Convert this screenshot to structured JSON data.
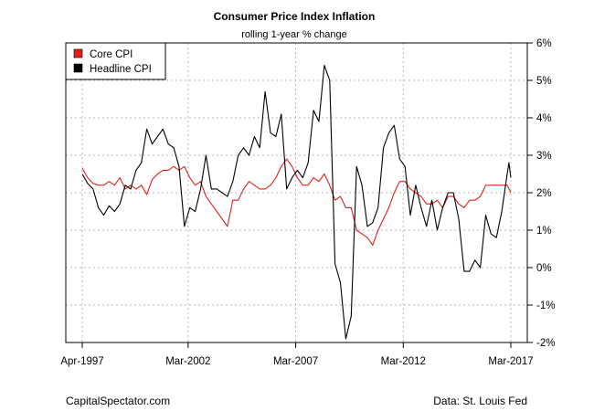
{
  "chart_data": {
    "type": "line",
    "title": "Consumer Price Index Inflation",
    "subtitle": "rolling 1-year % change",
    "ylim": [
      -2,
      6
    ],
    "y_ticks": [
      -2,
      -1,
      0,
      1,
      2,
      3,
      4,
      5,
      6
    ],
    "y_tick_labels": [
      "-2%",
      "-1%",
      "0%",
      "1%",
      "2%",
      "3%",
      "4%",
      "5%",
      "6%"
    ],
    "y_axis_position": "right",
    "x_range": [
      1997.25,
      2017.17
    ],
    "x_ticks": [
      1997.25,
      2002.17,
      2007.17,
      2012.17,
      2017.17
    ],
    "x_tick_labels": [
      "Apr-1997",
      "Mar-2002",
      "Mar-2007",
      "Mar-2012",
      "Mar-2017"
    ],
    "grid": true,
    "legend_position": "top-left",
    "series": [
      {
        "name": "Core CPI",
        "color": "#e0211b",
        "points": [
          [
            1997.25,
            2.65
          ],
          [
            1997.5,
            2.4
          ],
          [
            1997.75,
            2.25
          ],
          [
            1998.0,
            2.2
          ],
          [
            1998.25,
            2.2
          ],
          [
            1998.5,
            2.3
          ],
          [
            1998.75,
            2.2
          ],
          [
            1999.0,
            2.4
          ],
          [
            1999.25,
            2.1
          ],
          [
            1999.5,
            2.2
          ],
          [
            1999.75,
            2.1
          ],
          [
            2000.0,
            2.2
          ],
          [
            2000.25,
            1.95
          ],
          [
            2000.5,
            2.35
          ],
          [
            2000.75,
            2.5
          ],
          [
            2001.0,
            2.6
          ],
          [
            2001.25,
            2.6
          ],
          [
            2001.5,
            2.7
          ],
          [
            2001.75,
            2.6
          ],
          [
            2002.0,
            2.7
          ],
          [
            2002.25,
            2.4
          ],
          [
            2002.5,
            2.2
          ],
          [
            2002.75,
            2.3
          ],
          [
            2003.0,
            1.9
          ],
          [
            2003.25,
            1.7
          ],
          [
            2003.5,
            1.5
          ],
          [
            2003.75,
            1.3
          ],
          [
            2004.0,
            1.1
          ],
          [
            2004.25,
            1.8
          ],
          [
            2004.5,
            1.8
          ],
          [
            2004.75,
            2.1
          ],
          [
            2005.0,
            2.3
          ],
          [
            2005.25,
            2.2
          ],
          [
            2005.5,
            2.1
          ],
          [
            2005.75,
            2.1
          ],
          [
            2006.0,
            2.2
          ],
          [
            2006.25,
            2.4
          ],
          [
            2006.5,
            2.7
          ],
          [
            2006.75,
            2.9
          ],
          [
            2007.0,
            2.7
          ],
          [
            2007.25,
            2.4
          ],
          [
            2007.5,
            2.2
          ],
          [
            2007.75,
            2.2
          ],
          [
            2008.0,
            2.4
          ],
          [
            2008.25,
            2.3
          ],
          [
            2008.5,
            2.5
          ],
          [
            2008.75,
            2.2
          ],
          [
            2009.0,
            1.8
          ],
          [
            2009.25,
            1.9
          ],
          [
            2009.5,
            1.6
          ],
          [
            2009.75,
            1.6
          ],
          [
            2010.0,
            1.0
          ],
          [
            2010.25,
            0.9
          ],
          [
            2010.5,
            0.8
          ],
          [
            2010.75,
            0.6
          ],
          [
            2011.0,
            1.0
          ],
          [
            2011.25,
            1.3
          ],
          [
            2011.5,
            1.6
          ],
          [
            2011.75,
            2.0
          ],
          [
            2012.0,
            2.3
          ],
          [
            2012.25,
            2.3
          ],
          [
            2012.5,
            2.1
          ],
          [
            2012.75,
            2.0
          ],
          [
            2013.0,
            1.9
          ],
          [
            2013.25,
            1.7
          ],
          [
            2013.5,
            1.7
          ],
          [
            2013.75,
            1.8
          ],
          [
            2014.0,
            1.6
          ],
          [
            2014.25,
            1.9
          ],
          [
            2014.5,
            1.9
          ],
          [
            2014.75,
            1.7
          ],
          [
            2015.0,
            1.6
          ],
          [
            2015.25,
            1.8
          ],
          [
            2015.5,
            1.8
          ],
          [
            2015.75,
            1.9
          ],
          [
            2016.0,
            2.2
          ],
          [
            2016.25,
            2.2
          ],
          [
            2016.5,
            2.2
          ],
          [
            2016.75,
            2.2
          ],
          [
            2017.0,
            2.2
          ],
          [
            2017.17,
            2.0
          ]
        ]
      },
      {
        "name": "Headline CPI",
        "color": "#000000",
        "points": [
          [
            1997.25,
            2.5
          ],
          [
            1997.5,
            2.25
          ],
          [
            1997.75,
            2.1
          ],
          [
            1998.0,
            1.6
          ],
          [
            1998.25,
            1.4
          ],
          [
            1998.5,
            1.65
          ],
          [
            1998.75,
            1.5
          ],
          [
            1999.0,
            1.7
          ],
          [
            1999.25,
            2.2
          ],
          [
            1999.5,
            2.1
          ],
          [
            1999.75,
            2.6
          ],
          [
            2000.0,
            2.8
          ],
          [
            2000.25,
            3.7
          ],
          [
            2000.5,
            3.3
          ],
          [
            2000.75,
            3.5
          ],
          [
            2001.0,
            3.7
          ],
          [
            2001.25,
            3.3
          ],
          [
            2001.5,
            3.2
          ],
          [
            2001.75,
            2.7
          ],
          [
            2002.0,
            1.1
          ],
          [
            2002.25,
            1.6
          ],
          [
            2002.5,
            1.5
          ],
          [
            2002.75,
            2.1
          ],
          [
            2003.0,
            3.0
          ],
          [
            2003.25,
            2.1
          ],
          [
            2003.5,
            2.1
          ],
          [
            2003.75,
            2.0
          ],
          [
            2004.0,
            1.9
          ],
          [
            2004.25,
            2.3
          ],
          [
            2004.5,
            3.0
          ],
          [
            2004.75,
            3.2
          ],
          [
            2005.0,
            3.0
          ],
          [
            2005.25,
            3.5
          ],
          [
            2005.5,
            3.2
          ],
          [
            2005.75,
            4.7
          ],
          [
            2006.0,
            3.6
          ],
          [
            2006.25,
            3.5
          ],
          [
            2006.5,
            4.1
          ],
          [
            2006.75,
            2.1
          ],
          [
            2007.0,
            2.4
          ],
          [
            2007.25,
            2.6
          ],
          [
            2007.5,
            2.4
          ],
          [
            2007.75,
            2.8
          ],
          [
            2008.0,
            4.2
          ],
          [
            2008.25,
            3.9
          ],
          [
            2008.5,
            5.4
          ],
          [
            2008.75,
            5.0
          ],
          [
            2009.0,
            0.1
          ],
          [
            2009.25,
            -0.4
          ],
          [
            2009.5,
            -1.9
          ],
          [
            2009.75,
            -1.3
          ],
          [
            2010.0,
            2.7
          ],
          [
            2010.25,
            2.2
          ],
          [
            2010.5,
            1.1
          ],
          [
            2010.75,
            1.2
          ],
          [
            2011.0,
            1.6
          ],
          [
            2011.25,
            3.2
          ],
          [
            2011.5,
            3.6
          ],
          [
            2011.75,
            3.8
          ],
          [
            2012.0,
            2.9
          ],
          [
            2012.25,
            2.7
          ],
          [
            2012.5,
            1.4
          ],
          [
            2012.75,
            2.2
          ],
          [
            2013.0,
            1.6
          ],
          [
            2013.25,
            1.1
          ],
          [
            2013.5,
            1.8
          ],
          [
            2013.75,
            1.0
          ],
          [
            2014.0,
            1.6
          ],
          [
            2014.25,
            2.0
          ],
          [
            2014.5,
            2.0
          ],
          [
            2014.75,
            1.3
          ],
          [
            2015.0,
            -0.1
          ],
          [
            2015.25,
            -0.1
          ],
          [
            2015.5,
            0.2
          ],
          [
            2015.75,
            0.0
          ],
          [
            2016.0,
            1.4
          ],
          [
            2016.25,
            0.9
          ],
          [
            2016.5,
            0.8
          ],
          [
            2016.75,
            1.5
          ],
          [
            2017.0,
            2.5
          ],
          [
            2017.08,
            2.8
          ],
          [
            2017.17,
            2.4
          ]
        ]
      }
    ]
  },
  "footer": {
    "left": "CapitalSpectator.com",
    "right": "Data: St. Louis Fed"
  }
}
